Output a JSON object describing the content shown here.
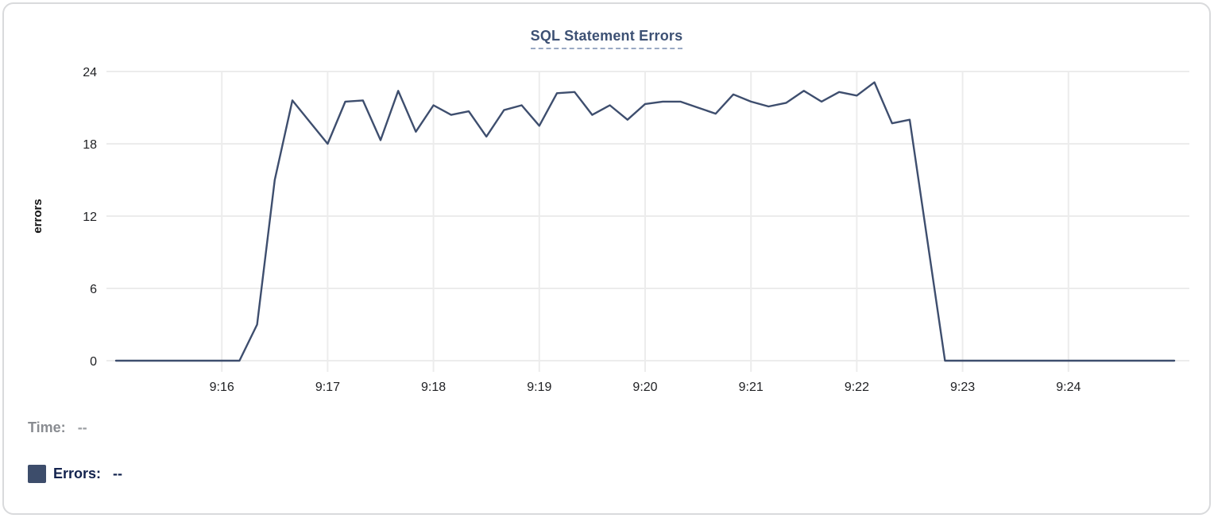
{
  "title": "SQL Statement Errors",
  "legend": {
    "time_label": "Time:",
    "time_value": "--",
    "errors_label": "Errors:",
    "errors_value": "--",
    "swatch_color": "#3d4d6b"
  },
  "colors": {
    "line": "#3e4e6e",
    "title_text": "#3d5174",
    "title_underline": "#9aa9c4",
    "gridline": "#ececec",
    "tick_text": "#202124",
    "legend_time": "#898c91",
    "legend_errors": "#13234e"
  },
  "chart_data": {
    "type": "line",
    "title": "SQL Statement Errors",
    "xlabel": "",
    "ylabel": "errors",
    "ylim": [
      0,
      24
    ],
    "y_ticks": [
      0,
      6,
      12,
      18,
      24
    ],
    "x_tick_labels": [
      "9:16",
      "9:17",
      "9:18",
      "9:19",
      "9:20",
      "9:21",
      "9:22",
      "9:23",
      "9:24"
    ],
    "x_start": "9:15:00",
    "x_end": "9:25:00",
    "interval_seconds": 10,
    "grid": true,
    "legend_position": "bottom-left",
    "line_color": "#3e4e6e",
    "x": [
      "9:15:00",
      "9:15:10",
      "9:15:20",
      "9:15:30",
      "9:15:40",
      "9:15:50",
      "9:16:00",
      "9:16:10",
      "9:16:20",
      "9:16:30",
      "9:16:40",
      "9:16:50",
      "9:17:00",
      "9:17:10",
      "9:17:20",
      "9:17:30",
      "9:17:40",
      "9:17:50",
      "9:18:00",
      "9:18:10",
      "9:18:20",
      "9:18:30",
      "9:18:40",
      "9:18:50",
      "9:19:00",
      "9:19:10",
      "9:19:20",
      "9:19:30",
      "9:19:40",
      "9:19:50",
      "9:20:00",
      "9:20:10",
      "9:20:20",
      "9:20:30",
      "9:20:40",
      "9:20:50",
      "9:21:00",
      "9:21:10",
      "9:21:20",
      "9:21:30",
      "9:21:40",
      "9:21:50",
      "9:22:00",
      "9:22:10",
      "9:22:20",
      "9:22:30",
      "9:22:40",
      "9:22:50",
      "9:23:00",
      "9:23:10",
      "9:23:20",
      "9:23:30",
      "9:23:40",
      "9:23:50",
      "9:24:00",
      "9:24:10",
      "9:24:20",
      "9:24:30",
      "9:24:40",
      "9:24:50",
      "9:25:00"
    ],
    "series": [
      {
        "name": "Errors",
        "values": [
          0,
          0,
          0,
          0,
          0,
          0,
          0,
          0,
          3,
          15,
          21.6,
          19.8,
          18,
          21.5,
          21.6,
          18.3,
          22.4,
          19,
          21.2,
          20.4,
          20.7,
          18.6,
          20.8,
          21.2,
          19.5,
          22.2,
          22.3,
          20.4,
          21.2,
          20,
          21.3,
          21.5,
          21.5,
          21,
          20.5,
          22.1,
          21.5,
          21.1,
          21.4,
          22.4,
          21.5,
          22.3,
          22,
          23.1,
          19.7,
          20,
          10,
          0,
          0,
          0,
          0,
          0,
          0,
          0,
          0,
          0,
          0,
          0,
          0,
          0,
          0
        ]
      }
    ]
  }
}
